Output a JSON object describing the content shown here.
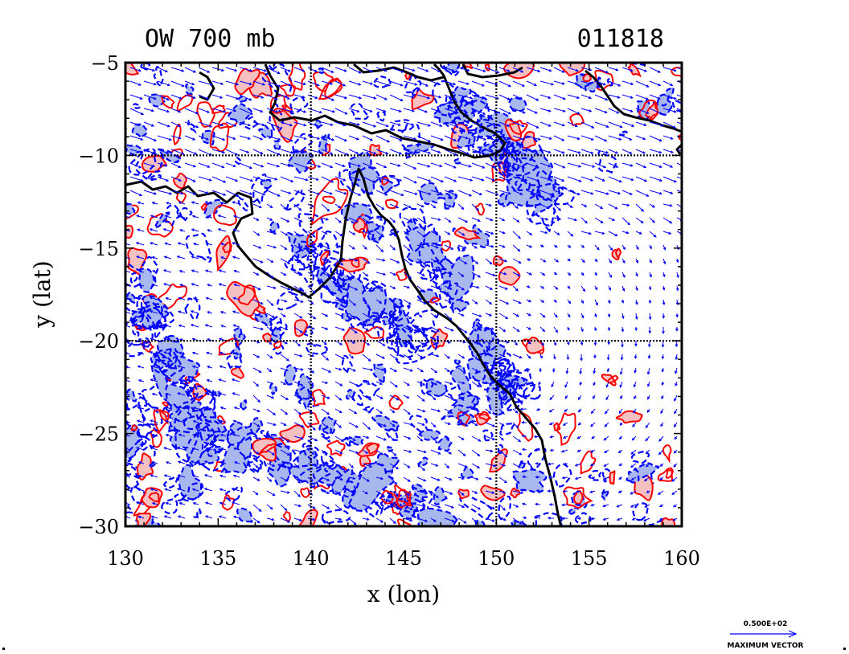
{
  "chart_data": {
    "type": "contour",
    "title_left": "OW 700 mb",
    "title_right": "011818",
    "xlabel": "x (lon)",
    "ylabel": "y (lat)",
    "xlim": [
      130,
      160
    ],
    "ylim": [
      -30,
      -5
    ],
    "x_ticks": [
      130,
      135,
      140,
      145,
      150,
      155,
      160
    ],
    "y_ticks": [
      -5,
      -10,
      -15,
      -20,
      -25,
      -30
    ],
    "x_tick_labels": [
      "130",
      "135",
      "140",
      "145",
      "150",
      "155",
      "160"
    ],
    "y_tick_labels": [
      "−5",
      "−10",
      "−15",
      "−20",
      "−25",
      "−30"
    ],
    "gridlines_x": [
      140,
      150
    ],
    "gridlines_y": [
      -10,
      -20
    ],
    "series": [
      {
        "name": "",
        "color": "#ff0000",
        "fill": "#f4c0c0"
      },
      {
        "name": "",
        "color": "#0000ff",
        "fill": "#a8b8ee"
      },
      {
        "name": "",
        "color": "#000000"
      }
    ],
    "vector_legend": {
      "value_label": "0.500E+02",
      "caption": "MAXIMUM VECTOR",
      "color": "#0000ff"
    }
  }
}
